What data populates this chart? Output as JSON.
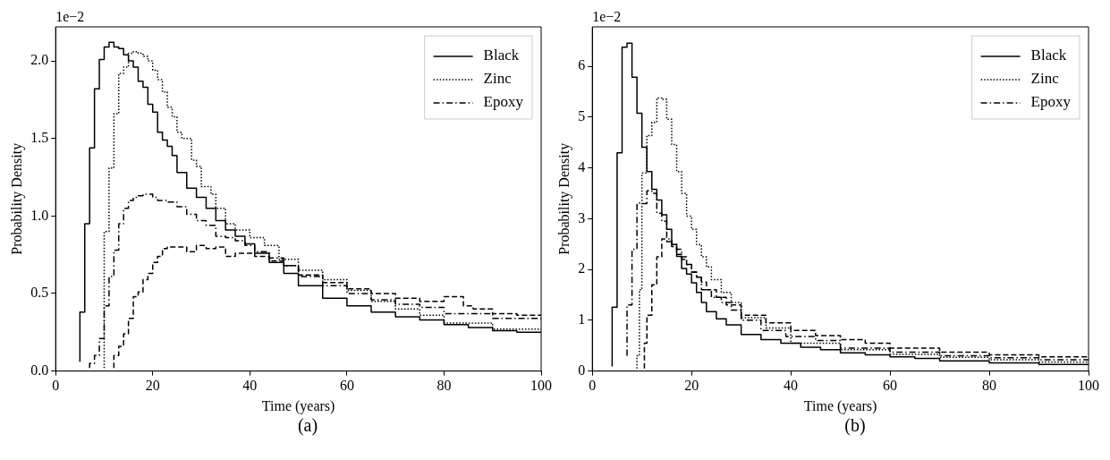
{
  "chart_data": [
    {
      "type": "step",
      "title": "(a)",
      "xlabel": "Time (years)",
      "ylabel": "Probability Density",
      "annotations": [
        "1e−2"
      ],
      "xlim": [
        0,
        100
      ],
      "xticks": [
        0,
        20,
        40,
        60,
        80,
        100
      ],
      "ylim": [
        0,
        2.22
      ],
      "yticks": [
        {
          "value": 0,
          "label": "0.0"
        },
        {
          "value": 0.5,
          "label": "0.5"
        },
        {
          "value": 1,
          "label": "1.0"
        },
        {
          "value": 1.5,
          "label": "1.5"
        },
        {
          "value": 2,
          "label": "2.0"
        }
      ],
      "legend": "top right",
      "grid": false,
      "series": [
        {
          "name": "Black",
          "color": "#000000",
          "line_style": "solid",
          "x": [
            5,
            6,
            7,
            8,
            9,
            10,
            11,
            12,
            13,
            14,
            15,
            16,
            17,
            18,
            19,
            20,
            21,
            22,
            23,
            24,
            25,
            27,
            29,
            31,
            33,
            35,
            37,
            39,
            41,
            44,
            47,
            50,
            55,
            60,
            65,
            70,
            75,
            80,
            85,
            90,
            95,
            100
          ],
          "values": [
            0.06,
            0.38,
            0.95,
            1.44,
            1.82,
            2.01,
            2.09,
            2.12,
            2.09,
            2.08,
            2.04,
            2.0,
            1.96,
            1.87,
            1.83,
            1.72,
            1.67,
            1.54,
            1.49,
            1.45,
            1.39,
            1.28,
            1.18,
            1.12,
            1.05,
            0.97,
            0.91,
            0.87,
            0.82,
            0.76,
            0.7,
            0.63,
            0.55,
            0.47,
            0.42,
            0.38,
            0.35,
            0.33,
            0.3,
            0.28,
            0.26,
            0.25
          ]
        },
        {
          "color": "#000000",
          "line_style": "dashed",
          "x": [
            12,
            13,
            14,
            15,
            16,
            17,
            18,
            19,
            20,
            21,
            22,
            23,
            25,
            27,
            29,
            31,
            33,
            35,
            37,
            39,
            41,
            44,
            47,
            50,
            55,
            60,
            65,
            70,
            75,
            80,
            84,
            86,
            90,
            95,
            100
          ],
          "values": [
            0.02,
            0.1,
            0.16,
            0.24,
            0.34,
            0.48,
            0.51,
            0.59,
            0.63,
            0.7,
            0.74,
            0.79,
            0.8,
            0.8,
            0.77,
            0.81,
            0.79,
            0.8,
            0.74,
            0.76,
            0.76,
            0.74,
            0.71,
            0.68,
            0.62,
            0.57,
            0.53,
            0.5,
            0.47,
            0.45,
            0.48,
            0.42,
            0.4,
            0.37,
            0.36
          ]
        },
        {
          "name": "Zinc",
          "color": "#000000",
          "line_style": "dotted",
          "x": [
            10,
            11,
            12,
            13,
            14,
            15,
            16,
            17,
            18,
            19,
            20,
            21,
            22,
            23,
            24,
            25,
            26,
            28,
            29,
            30,
            32,
            33,
            35,
            37,
            40,
            43,
            46,
            50,
            55,
            60,
            65,
            70,
            75,
            80,
            90,
            100
          ],
          "values": [
            0.02,
            0.9,
            1.31,
            1.66,
            1.92,
            1.96,
            2.05,
            2.06,
            2.05,
            2.03,
            2.0,
            1.94,
            1.88,
            1.8,
            1.7,
            1.64,
            1.54,
            1.5,
            1.36,
            1.32,
            1.19,
            1.14,
            1.05,
            0.95,
            0.91,
            0.86,
            0.81,
            0.72,
            0.65,
            0.59,
            0.52,
            0.45,
            0.4,
            0.36,
            0.31,
            0.27
          ]
        },
        {
          "name": "Epoxy",
          "color": "#000000",
          "line_style": "dashdot",
          "x": [
            7,
            8,
            9,
            10,
            11,
            12,
            13,
            14,
            15,
            16,
            17,
            18,
            19,
            20,
            21,
            23,
            25,
            27,
            29,
            31,
            33,
            35,
            37,
            39,
            41,
            44,
            47,
            50,
            55,
            60,
            65,
            70,
            75,
            80,
            90,
            100
          ],
          "values": [
            0.02,
            0.05,
            0.1,
            0.21,
            0.42,
            0.61,
            0.78,
            0.95,
            1.05,
            1.1,
            1.12,
            1.13,
            1.14,
            1.14,
            1.12,
            1.1,
            1.09,
            1.06,
            1.01,
            0.97,
            0.94,
            0.87,
            0.86,
            0.84,
            0.81,
            0.77,
            0.73,
            0.68,
            0.61,
            0.55,
            0.5,
            0.46,
            0.43,
            0.41,
            0.37,
            0.34
          ]
        }
      ]
    },
    {
      "type": "step",
      "title": "(b)",
      "xlabel": "Time (years)",
      "ylabel": "Probability Density",
      "annotations": [
        "1e−2"
      ],
      "xlim": [
        0,
        100
      ],
      "xticks": [
        0,
        20,
        40,
        60,
        80,
        100
      ],
      "ylim": [
        0,
        6.78
      ],
      "yticks": [
        0,
        1,
        2,
        3,
        4,
        5,
        6
      ],
      "legend": "top right",
      "grid": false,
      "series": [
        {
          "name": "Black",
          "color": "#000000",
          "line_style": "solid",
          "x": [
            4,
            5,
            6,
            7,
            8,
            9,
            10,
            11,
            12,
            13,
            14,
            15,
            16,
            17,
            18,
            19,
            20,
            21,
            22,
            23,
            25,
            27,
            30,
            34,
            38,
            42,
            46,
            50,
            55,
            60,
            65,
            70,
            80,
            90,
            100
          ],
          "values": [
            0.09,
            1.26,
            4.3,
            6.38,
            6.46,
            5.79,
            5.08,
            4.41,
            3.93,
            3.58,
            3.37,
            3.08,
            2.79,
            2.49,
            2.26,
            2.02,
            1.91,
            1.74,
            1.55,
            1.35,
            1.17,
            1.03,
            0.91,
            0.72,
            0.62,
            0.55,
            0.47,
            0.42,
            0.36,
            0.32,
            0.28,
            0.25,
            0.2,
            0.16,
            0.13
          ]
        },
        {
          "color": "#000000",
          "line_style": "dashed",
          "x": [
            10.5,
            11,
            12,
            13,
            14,
            15,
            16,
            17,
            18,
            19,
            20,
            21,
            22,
            23,
            25,
            27,
            30,
            35,
            40,
            45,
            50,
            55,
            60,
            70,
            80,
            90,
            100
          ],
          "values": [
            0.05,
            0.55,
            1.1,
            1.7,
            2.25,
            2.6,
            2.55,
            2.45,
            2.3,
            2.2,
            2.1,
            1.95,
            1.85,
            1.75,
            1.6,
            1.45,
            1.3,
            1.1,
            0.95,
            0.8,
            0.7,
            0.62,
            0.55,
            0.45,
            0.37,
            0.32,
            0.28
          ]
        },
        {
          "name": "Zinc",
          "color": "#000000",
          "line_style": "dotted",
          "x": [
            9,
            9.5,
            10,
            11,
            12,
            13,
            14,
            15,
            16,
            17,
            18,
            19,
            20,
            21,
            22,
            23,
            24,
            26,
            28,
            30,
            35,
            40,
            50,
            60,
            70,
            80,
            90,
            100
          ],
          "values": [
            0.05,
            0.3,
            1.6,
            3.9,
            4.64,
            4.9,
            5.38,
            5.35,
            4.96,
            4.46,
            3.93,
            3.5,
            3.05,
            2.79,
            2.49,
            2.25,
            2.05,
            1.8,
            1.55,
            1.35,
            1.05,
            0.85,
            0.55,
            0.42,
            0.33,
            0.27,
            0.22,
            0.18
          ]
        },
        {
          "name": "Epoxy",
          "color": "#000000",
          "line_style": "dashdot",
          "x": [
            7,
            8,
            9,
            10,
            11,
            12,
            13,
            14,
            15,
            16,
            17,
            18,
            19,
            20,
            21,
            22,
            24,
            26,
            28,
            30,
            34,
            39,
            45,
            50,
            60,
            70,
            80,
            90,
            100
          ],
          "values": [
            0.3,
            1.3,
            2.4,
            3.31,
            3.3,
            3.55,
            3.5,
            3.11,
            2.95,
            2.6,
            2.5,
            2.4,
            2.25,
            2.1,
            1.95,
            1.85,
            1.6,
            1.45,
            1.35,
            1.2,
            1.0,
            0.8,
            0.68,
            0.6,
            0.45,
            0.37,
            0.3,
            0.26,
            0.22
          ]
        }
      ]
    }
  ]
}
